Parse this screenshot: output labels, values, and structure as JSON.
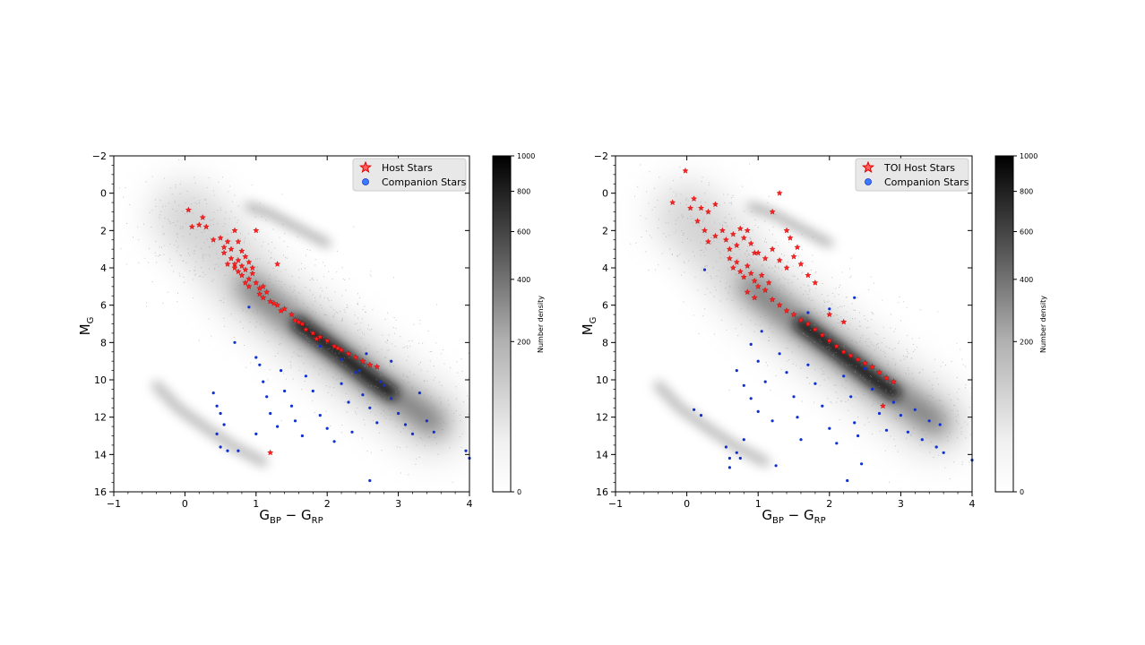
{
  "chart_data": [
    {
      "type": "scatter",
      "panel": "left",
      "xlabel": "G_BP − G_RP",
      "ylabel": "M_G",
      "xlim": [
        -1,
        4
      ],
      "ylim": [
        16,
        -2
      ],
      "y_inverted": true,
      "x_ticks": [
        "−1",
        "0",
        "1",
        "2",
        "3",
        "4"
      ],
      "y_ticks": [
        "−2",
        "0",
        "2",
        "4",
        "6",
        "8",
        "10",
        "12",
        "14",
        "16"
      ],
      "background": "2D histogram (number density) of field stars, grayscale",
      "colorbar": {
        "label": "Number density",
        "ticks": [
          "0",
          "200",
          "400",
          "600",
          "800",
          "1000"
        ],
        "range": [
          0,
          1000
        ]
      },
      "legend": {
        "placement": "top-right",
        "entries": [
          "Host Stars",
          "Companion Stars"
        ]
      },
      "series": [
        {
          "name": "Host Stars",
          "marker": "star",
          "color": "#ff2020",
          "points": [
            [
              0.05,
              0.9
            ],
            [
              0.1,
              1.8
            ],
            [
              0.2,
              1.7
            ],
            [
              0.3,
              1.8
            ],
            [
              0.25,
              1.3
            ],
            [
              0.4,
              2.5
            ],
            [
              0.5,
              2.4
            ],
            [
              0.55,
              2.9
            ],
            [
              0.6,
              2.6
            ],
            [
              0.65,
              3.0
            ],
            [
              0.7,
              2.0
            ],
            [
              0.75,
              2.6
            ],
            [
              0.8,
              3.1
            ],
            [
              0.65,
              3.5
            ],
            [
              0.7,
              3.8
            ],
            [
              0.75,
              3.6
            ],
            [
              0.8,
              3.9
            ],
            [
              0.85,
              3.4
            ],
            [
              0.9,
              3.7
            ],
            [
              0.75,
              4.2
            ],
            [
              0.8,
              4.4
            ],
            [
              0.85,
              4.1
            ],
            [
              0.9,
              4.6
            ],
            [
              0.95,
              4.3
            ],
            [
              0.85,
              4.8
            ],
            [
              0.9,
              5.0
            ],
            [
              1.0,
              4.8
            ],
            [
              1.05,
              5.1
            ],
            [
              1.0,
              2.0
            ],
            [
              1.05,
              5.4
            ],
            [
              1.1,
              5.6
            ],
            [
              1.15,
              5.3
            ],
            [
              1.2,
              5.8
            ],
            [
              1.3,
              3.8
            ],
            [
              1.3,
              6.0
            ],
            [
              1.4,
              6.2
            ],
            [
              1.5,
              6.5
            ],
            [
              1.55,
              6.8
            ],
            [
              1.65,
              7.0
            ],
            [
              1.7,
              7.3
            ],
            [
              1.8,
              7.5
            ],
            [
              1.9,
              7.7
            ],
            [
              2.0,
              7.9
            ],
            [
              2.1,
              8.2
            ],
            [
              2.2,
              8.4
            ],
            [
              2.3,
              8.6
            ],
            [
              2.4,
              8.8
            ],
            [
              2.5,
              9.0
            ],
            [
              2.6,
              9.2
            ],
            [
              2.7,
              9.3
            ],
            [
              0.55,
              3.2
            ],
            [
              0.6,
              3.8
            ],
            [
              0.7,
              4.0
            ],
            [
              0.95,
              4.0
            ],
            [
              1.1,
              5.0
            ],
            [
              1.25,
              5.9
            ],
            [
              1.35,
              6.3
            ],
            [
              1.6,
              6.9
            ],
            [
              1.85,
              7.8
            ],
            [
              2.15,
              8.3
            ],
            [
              1.2,
              13.9
            ]
          ]
        },
        {
          "name": "Companion Stars",
          "marker": "circle",
          "color": "#1030d0",
          "points": [
            [
              0.4,
              10.7
            ],
            [
              0.45,
              11.4
            ],
            [
              0.5,
              11.8
            ],
            [
              0.55,
              12.4
            ],
            [
              0.45,
              12.9
            ],
            [
              0.5,
              13.6
            ],
            [
              0.6,
              13.8
            ],
            [
              0.75,
              13.8
            ],
            [
              0.7,
              8.0
            ],
            [
              0.9,
              6.1
            ],
            [
              1.0,
              8.8
            ],
            [
              1.05,
              9.2
            ],
            [
              1.1,
              10.1
            ],
            [
              1.15,
              10.9
            ],
            [
              1.2,
              11.8
            ],
            [
              1.3,
              12.5
            ],
            [
              1.0,
              12.9
            ],
            [
              1.35,
              9.5
            ],
            [
              1.4,
              10.6
            ],
            [
              1.5,
              11.4
            ],
            [
              1.55,
              12.2
            ],
            [
              1.65,
              13.0
            ],
            [
              1.7,
              9.8
            ],
            [
              1.8,
              10.6
            ],
            [
              1.9,
              11.9
            ],
            [
              2.0,
              12.6
            ],
            [
              2.1,
              13.3
            ],
            [
              2.2,
              10.2
            ],
            [
              2.3,
              11.2
            ],
            [
              2.35,
              12.8
            ],
            [
              2.4,
              9.6
            ],
            [
              2.5,
              10.8
            ],
            [
              2.6,
              11.5
            ],
            [
              2.7,
              12.3
            ],
            [
              2.8,
              10.3
            ],
            [
              2.9,
              11.0
            ],
            [
              3.0,
              11.8
            ],
            [
              3.1,
              12.4
            ],
            [
              3.2,
              12.9
            ],
            [
              3.3,
              10.7
            ],
            [
              3.4,
              12.2
            ],
            [
              3.5,
              12.8
            ],
            [
              3.95,
              13.8
            ],
            [
              4.0,
              14.2
            ],
            [
              2.6,
              15.4
            ],
            [
              1.9,
              8.2
            ],
            [
              2.2,
              8.9
            ],
            [
              2.45,
              9.5
            ],
            [
              2.75,
              10.1
            ],
            [
              2.55,
              8.6
            ],
            [
              2.9,
              9.0
            ]
          ]
        }
      ]
    },
    {
      "type": "scatter",
      "panel": "right",
      "xlabel": "G_BP − G_RP",
      "ylabel": "M_G",
      "xlim": [
        -1,
        4
      ],
      "ylim": [
        16,
        -2
      ],
      "y_inverted": true,
      "x_ticks": [
        "−1",
        "0",
        "1",
        "2",
        "3",
        "4"
      ],
      "y_ticks": [
        "−2",
        "0",
        "2",
        "4",
        "6",
        "8",
        "10",
        "12",
        "14",
        "16"
      ],
      "background": "2D histogram (number density) of field stars, grayscale",
      "colorbar": {
        "label": "Number density",
        "ticks": [
          "0",
          "200",
          "400",
          "600",
          "800",
          "1000"
        ],
        "range": [
          0,
          1000
        ]
      },
      "legend": {
        "placement": "top-right",
        "entries": [
          "TOI Host Stars",
          "Companion Stars"
        ]
      },
      "series": [
        {
          "name": "TOI Host Stars",
          "marker": "star",
          "color": "#ff2020",
          "points": [
            [
              -0.2,
              0.5
            ],
            [
              -0.02,
              -1.2
            ],
            [
              0.05,
              0.8
            ],
            [
              0.1,
              0.3
            ],
            [
              0.2,
              0.8
            ],
            [
              0.3,
              1.0
            ],
            [
              0.4,
              0.6
            ],
            [
              0.15,
              1.5
            ],
            [
              0.25,
              2.0
            ],
            [
              0.3,
              2.6
            ],
            [
              0.4,
              2.3
            ],
            [
              0.5,
              2.0
            ],
            [
              0.55,
              2.5
            ],
            [
              0.6,
              3.0
            ],
            [
              0.65,
              2.2
            ],
            [
              0.7,
              2.8
            ],
            [
              0.75,
              1.9
            ],
            [
              0.8,
              2.4
            ],
            [
              0.85,
              2.0
            ],
            [
              0.9,
              2.7
            ],
            [
              0.95,
              3.2
            ],
            [
              0.6,
              3.5
            ],
            [
              0.65,
              4.0
            ],
            [
              0.7,
              3.7
            ],
            [
              0.75,
              4.2
            ],
            [
              0.8,
              4.5
            ],
            [
              0.85,
              3.9
            ],
            [
              0.9,
              4.3
            ],
            [
              0.95,
              4.7
            ],
            [
              1.0,
              5.0
            ],
            [
              1.05,
              4.4
            ],
            [
              1.1,
              5.2
            ],
            [
              1.0,
              3.2
            ],
            [
              1.1,
              3.5
            ],
            [
              1.2,
              3.0
            ],
            [
              1.3,
              3.6
            ],
            [
              1.4,
              4.0
            ],
            [
              1.5,
              3.4
            ],
            [
              1.6,
              3.8
            ],
            [
              1.7,
              4.4
            ],
            [
              1.8,
              4.8
            ],
            [
              1.2,
              1.0
            ],
            [
              1.3,
              0.0
            ],
            [
              1.4,
              2.0
            ],
            [
              1.45,
              2.4
            ],
            [
              1.55,
              2.9
            ],
            [
              1.2,
              5.7
            ],
            [
              1.3,
              6.0
            ],
            [
              1.4,
              6.3
            ],
            [
              1.5,
              6.5
            ],
            [
              1.6,
              6.8
            ],
            [
              1.7,
              7.0
            ],
            [
              1.8,
              7.3
            ],
            [
              1.9,
              7.6
            ],
            [
              2.0,
              7.9
            ],
            [
              2.1,
              8.2
            ],
            [
              2.2,
              8.5
            ],
            [
              2.3,
              8.7
            ],
            [
              2.4,
              8.9
            ],
            [
              2.5,
              9.1
            ],
            [
              2.6,
              9.3
            ],
            [
              2.7,
              9.6
            ],
            [
              2.8,
              9.9
            ],
            [
              2.9,
              10.1
            ],
            [
              2.2,
              6.9
            ],
            [
              2.0,
              6.5
            ],
            [
              2.75,
              11.4
            ],
            [
              0.85,
              5.3
            ],
            [
              0.95,
              5.6
            ],
            [
              1.15,
              4.8
            ]
          ]
        },
        {
          "name": "Companion Stars",
          "marker": "circle",
          "color": "#1030d0",
          "points": [
            [
              0.25,
              4.1
            ],
            [
              0.1,
              11.6
            ],
            [
              0.2,
              11.9
            ],
            [
              0.55,
              13.6
            ],
            [
              0.6,
              14.2
            ],
            [
              0.6,
              14.7
            ],
            [
              0.7,
              13.9
            ],
            [
              0.75,
              14.2
            ],
            [
              0.8,
              13.2
            ],
            [
              0.7,
              9.5
            ],
            [
              0.8,
              10.3
            ],
            [
              0.9,
              11.0
            ],
            [
              1.0,
              11.7
            ],
            [
              0.9,
              8.1
            ],
            [
              1.0,
              9.0
            ],
            [
              1.1,
              10.1
            ],
            [
              1.2,
              12.2
            ],
            [
              1.25,
              14.6
            ],
            [
              1.3,
              8.6
            ],
            [
              1.4,
              9.6
            ],
            [
              1.5,
              10.9
            ],
            [
              1.55,
              12.0
            ],
            [
              1.6,
              13.2
            ],
            [
              1.7,
              9.2
            ],
            [
              1.8,
              10.2
            ],
            [
              1.9,
              11.4
            ],
            [
              2.0,
              12.6
            ],
            [
              2.1,
              13.4
            ],
            [
              2.2,
              9.8
            ],
            [
              2.3,
              10.9
            ],
            [
              2.35,
              12.3
            ],
            [
              2.4,
              13.0
            ],
            [
              2.45,
              14.5
            ],
            [
              2.5,
              9.4
            ],
            [
              2.6,
              10.5
            ],
            [
              2.7,
              11.8
            ],
            [
              2.8,
              12.7
            ],
            [
              2.9,
              11.2
            ],
            [
              3.0,
              11.9
            ],
            [
              3.1,
              12.8
            ],
            [
              3.2,
              11.6
            ],
            [
              3.3,
              13.2
            ],
            [
              3.4,
              12.2
            ],
            [
              3.5,
              13.6
            ],
            [
              3.55,
              12.4
            ],
            [
              3.6,
              13.9
            ],
            [
              4.0,
              14.3
            ],
            [
              2.35,
              5.6
            ],
            [
              2.25,
              15.4
            ],
            [
              1.05,
              7.4
            ],
            [
              2.0,
              6.2
            ],
            [
              1.7,
              6.4
            ]
          ]
        }
      ]
    }
  ]
}
